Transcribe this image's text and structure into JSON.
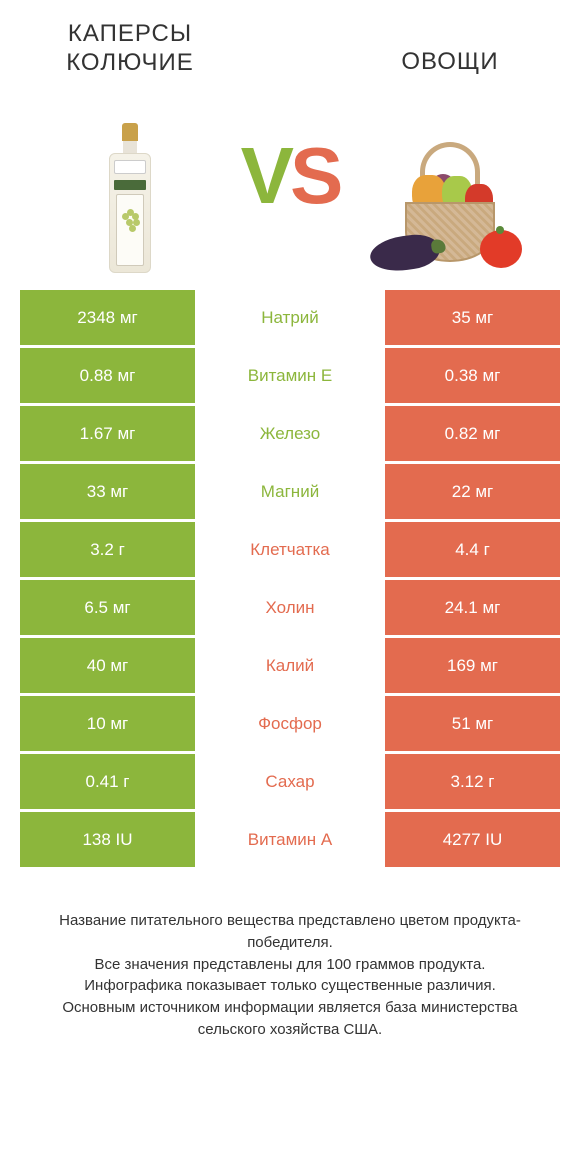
{
  "colors": {
    "green": "#8cb63c",
    "orange": "#e36b4f",
    "white": "#ffffff"
  },
  "products": {
    "left": {
      "title": "КАПЕРСЫ КОЛЮЧИЕ"
    },
    "right": {
      "title": "ОВОЩИ"
    }
  },
  "vs": {
    "v": "V",
    "s": "S"
  },
  "rows": [
    {
      "nutrient": "Натрий",
      "left": "2348 мг",
      "right": "35 мг",
      "winner": "left"
    },
    {
      "nutrient": "Витамин E",
      "left": "0.88 мг",
      "right": "0.38 мг",
      "winner": "left"
    },
    {
      "nutrient": "Железо",
      "left": "1.67 мг",
      "right": "0.82 мг",
      "winner": "left"
    },
    {
      "nutrient": "Магний",
      "left": "33 мг",
      "right": "22 мг",
      "winner": "left"
    },
    {
      "nutrient": "Клетчатка",
      "left": "3.2 г",
      "right": "4.4 г",
      "winner": "right"
    },
    {
      "nutrient": "Холин",
      "left": "6.5 мг",
      "right": "24.1 мг",
      "winner": "right"
    },
    {
      "nutrient": "Калий",
      "left": "40 мг",
      "right": "169 мг",
      "winner": "right"
    },
    {
      "nutrient": "Фосфор",
      "left": "10 мг",
      "right": "51 мг",
      "winner": "right"
    },
    {
      "nutrient": "Сахар",
      "left": "0.41 г",
      "right": "3.12 г",
      "winner": "right"
    },
    {
      "nutrient": "Витамин A",
      "left": "138 IU",
      "right": "4277 IU",
      "winner": "right"
    }
  ],
  "footer": {
    "l1": "Название питательного вещества представлено цветом продукта-победителя.",
    "l2": "Все значения представлены для 100 граммов продукта.",
    "l3": "Инфографика показывает только существенные различия.",
    "l4": "Основным источником информации является база министерства сельского хозяйства США."
  }
}
